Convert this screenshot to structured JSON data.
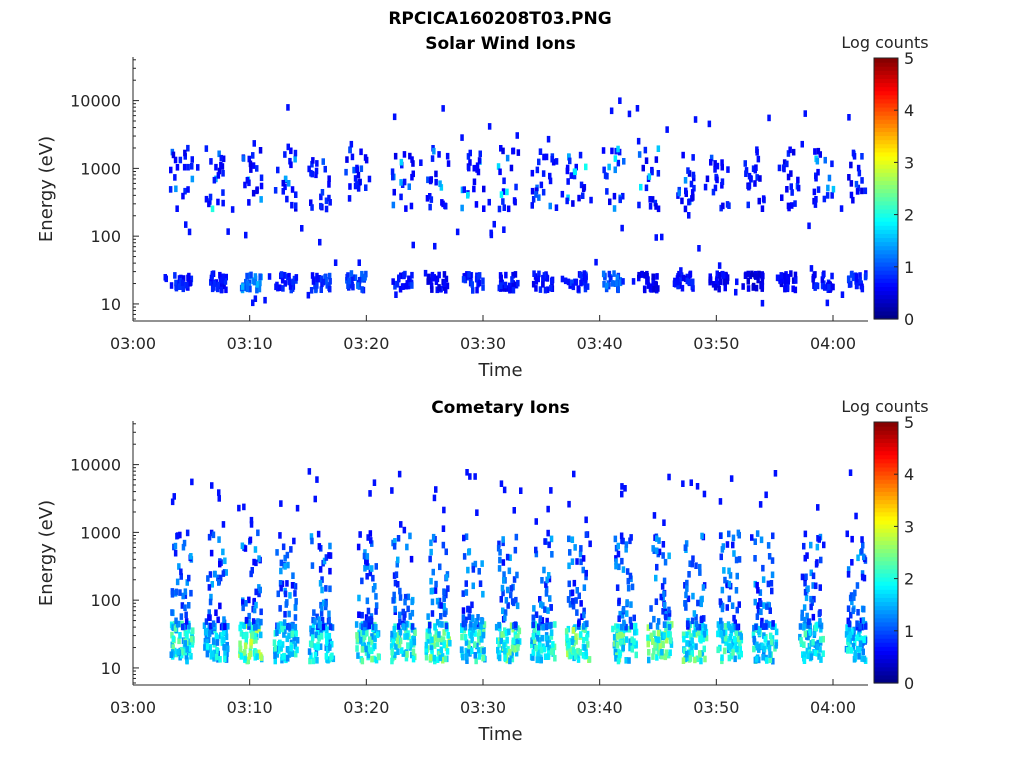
{
  "figure_title": "RPCICA160208T03.PNG",
  "chart_data": [
    {
      "type": "heatmap",
      "title": "Solar Wind Ions",
      "xlabel": "Time",
      "ylabel": "Energy (eV)",
      "y_scale": "log",
      "xlim": [
        "03:00",
        "04:03"
      ],
      "ylim": [
        5.6,
        44000
      ],
      "x_ticks": [
        "03:00",
        "03:10",
        "03:20",
        "03:30",
        "03:40",
        "03:50",
        "04:00"
      ],
      "y_ticks": [
        "10",
        "100",
        "1000",
        "10000"
      ],
      "colorbar": {
        "label": "Log counts",
        "range": [
          0,
          5
        ],
        "ticks": [
          "0",
          "1",
          "2",
          "3",
          "4",
          "5"
        ],
        "colormap": "jet"
      },
      "bursts": [
        {
          "t": "03:04",
          "low_level": 0.8,
          "high_level": 1.4
        },
        {
          "t": "03:07",
          "low_level": 0.7,
          "high_level": 1.7
        },
        {
          "t": "03:10",
          "low_level": 1.3,
          "high_level": 1.6
        },
        {
          "t": "03:13",
          "low_level": 0.8,
          "high_level": 1.4
        },
        {
          "t": "03:16",
          "low_level": 0.9,
          "high_level": 1.0
        },
        {
          "t": "03:19",
          "low_level": 1.0,
          "high_level": 1.0
        },
        {
          "t": "03:23",
          "low_level": 0.8,
          "high_level": 1.6
        },
        {
          "t": "03:26",
          "low_level": 0.6,
          "high_level": 1.4
        },
        {
          "t": "03:29",
          "low_level": 0.8,
          "high_level": 1.6
        },
        {
          "t": "03:32",
          "low_level": 0.7,
          "high_level": 1.7
        },
        {
          "t": "03:35",
          "low_level": 0.7,
          "high_level": 1.2
        },
        {
          "t": "03:38",
          "low_level": 0.8,
          "high_level": 1.8
        },
        {
          "t": "03:41",
          "low_level": 1.1,
          "high_level": 1.6
        },
        {
          "t": "03:44",
          "low_level": 0.6,
          "high_level": 1.5
        },
        {
          "t": "03:47",
          "low_level": 0.7,
          "high_level": 1.2
        },
        {
          "t": "03:50",
          "low_level": 0.6,
          "high_level": 1.0
        },
        {
          "t": "03:53",
          "low_level": 0.5,
          "high_level": 0.9
        },
        {
          "t": "03:56",
          "low_level": 0.6,
          "high_level": 1.3
        },
        {
          "t": "03:59",
          "low_level": 0.7,
          "high_level": 1.4
        },
        {
          "t": "04:02",
          "low_level": 0.8,
          "high_level": 1.0
        }
      ]
    },
    {
      "type": "heatmap",
      "title": "Cometary Ions",
      "xlabel": "Time",
      "ylabel": "Energy (eV)",
      "y_scale": "log",
      "xlim": [
        "03:00",
        "04:03"
      ],
      "ylim": [
        5.6,
        44000
      ],
      "x_ticks": [
        "03:00",
        "03:10",
        "03:20",
        "03:30",
        "03:40",
        "03:50",
        "04:00"
      ],
      "y_ticks": [
        "10",
        "100",
        "1000",
        "10000"
      ],
      "colorbar": {
        "label": "Log counts",
        "range": [
          0,
          5
        ],
        "ticks": [
          "0",
          "1",
          "2",
          "3",
          "4",
          "5"
        ],
        "colormap": "jet"
      },
      "bursts": [
        {
          "t": "03:04",
          "peak_level": 2.3
        },
        {
          "t": "03:07",
          "peak_level": 2.0
        },
        {
          "t": "03:10",
          "peak_level": 2.8
        },
        {
          "t": "03:13",
          "peak_level": 2.2
        },
        {
          "t": "03:16",
          "peak_level": 2.1
        },
        {
          "t": "03:20",
          "peak_level": 2.4
        },
        {
          "t": "03:23",
          "peak_level": 2.4
        },
        {
          "t": "03:26",
          "peak_level": 2.6
        },
        {
          "t": "03:29",
          "peak_level": 2.3
        },
        {
          "t": "03:32",
          "peak_level": 2.5
        },
        {
          "t": "03:35",
          "peak_level": 2.4
        },
        {
          "t": "03:38",
          "peak_level": 2.7
        },
        {
          "t": "03:42",
          "peak_level": 2.5
        },
        {
          "t": "03:45",
          "peak_level": 2.6
        },
        {
          "t": "03:48",
          "peak_level": 2.5
        },
        {
          "t": "03:51",
          "peak_level": 2.3
        },
        {
          "t": "03:54",
          "peak_level": 2.2
        },
        {
          "t": "03:58",
          "peak_level": 2.2
        },
        {
          "t": "04:02",
          "peak_level": 2.0
        }
      ]
    }
  ]
}
